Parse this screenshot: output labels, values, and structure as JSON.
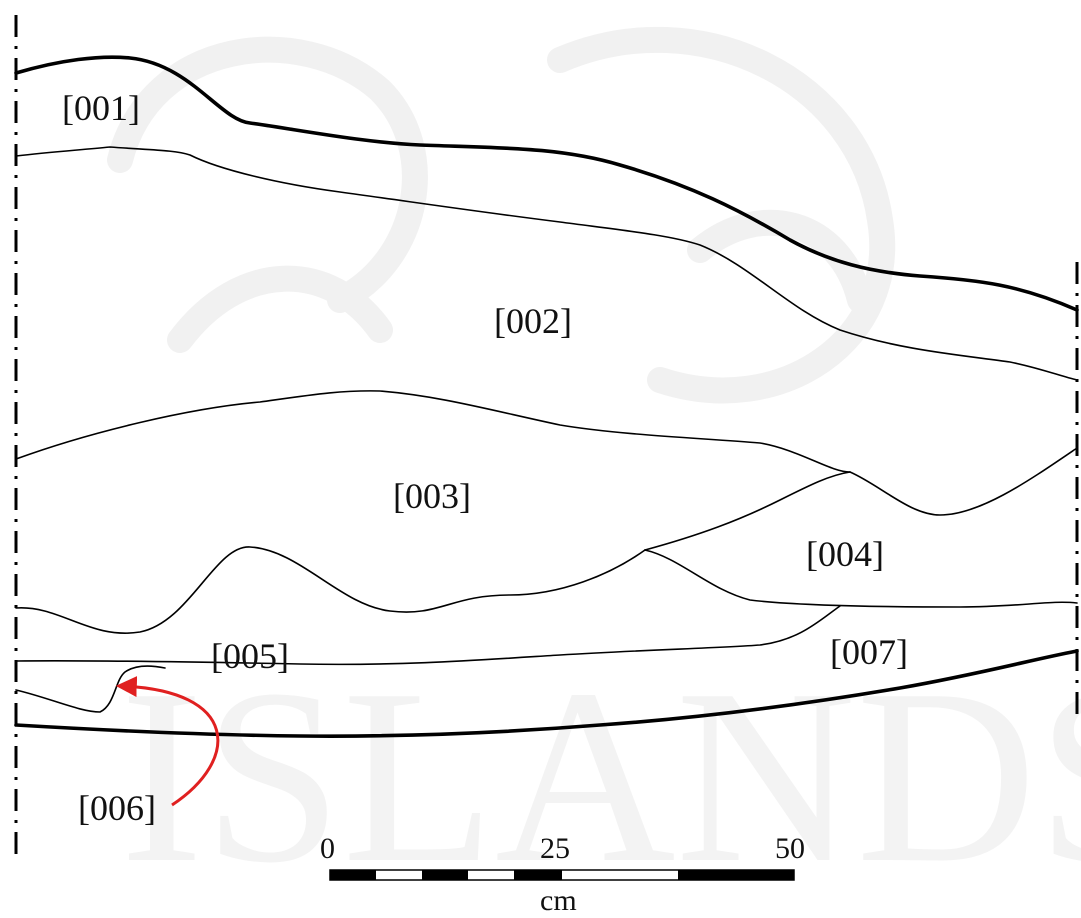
{
  "layers": [
    {
      "id": "001",
      "label": "[001]"
    },
    {
      "id": "002",
      "label": "[002]"
    },
    {
      "id": "003",
      "label": "[003]"
    },
    {
      "id": "004",
      "label": "[004]"
    },
    {
      "id": "005",
      "label": "[005]"
    },
    {
      "id": "006",
      "label": "[006]"
    },
    {
      "id": "007",
      "label": "[007]"
    }
  ],
  "scale": {
    "ticks": [
      "0",
      "25",
      "50"
    ],
    "unit": "cm"
  },
  "colors": {
    "line": "#000000",
    "arrow": "#e02020",
    "watermark": "#f1f1f1"
  }
}
